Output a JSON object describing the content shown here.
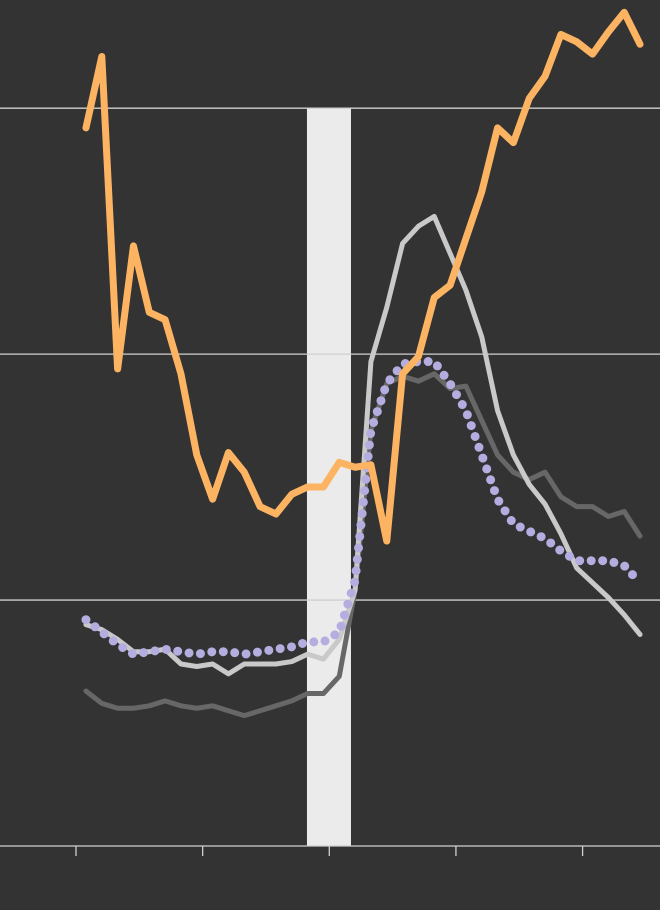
{
  "chart_data": {
    "type": "line",
    "x": [
      1,
      2,
      3,
      4,
      5,
      6,
      7,
      8,
      9,
      10,
      11,
      12,
      13,
      14,
      15,
      16,
      17,
      18,
      19,
      20,
      21,
      22,
      23,
      24,
      25,
      26,
      27,
      28,
      29,
      30,
      31,
      32,
      33,
      34,
      35,
      36
    ],
    "xlim": [
      -4.43,
      37.26
    ],
    "xticks": [
      0.37,
      8.37,
      16.37,
      24.37,
      32.37
    ],
    "ylim": [
      0,
      3.44
    ],
    "yticks": [
      0,
      1,
      2,
      3
    ],
    "grid": true,
    "shaded_span": {
      "x": [
        14.96,
        17.74
      ],
      "y": [
        0,
        3
      ],
      "color": "#ebebeb"
    },
    "series": [
      {
        "color": "#676767",
        "style": "solid",
        "values": [
          0.63,
          0.58,
          0.56,
          0.56,
          0.57,
          0.59,
          0.57,
          0.56,
          0.57,
          0.55,
          0.53,
          0.55,
          0.57,
          0.59,
          0.62,
          0.62,
          0.69,
          1.04,
          1.69,
          1.88,
          1.91,
          1.89,
          1.92,
          1.86,
          1.87,
          1.73,
          1.59,
          1.52,
          1.49,
          1.52,
          1.42,
          1.38,
          1.38,
          1.34,
          1.36,
          1.26
        ]
      },
      {
        "color": "#c9c9c9",
        "style": "solid",
        "values": [
          0.9,
          0.88,
          0.84,
          0.79,
          0.79,
          0.8,
          0.74,
          0.73,
          0.74,
          0.7,
          0.74,
          0.74,
          0.74,
          0.75,
          0.78,
          0.76,
          0.84,
          1.04,
          1.97,
          2.19,
          2.45,
          2.52,
          2.56,
          2.41,
          2.26,
          2.07,
          1.77,
          1.59,
          1.47,
          1.39,
          1.27,
          1.13,
          1.07,
          1.01,
          0.94,
          0.86
        ]
      },
      {
        "color": "#b4aee0",
        "style": "dotted",
        "values": [
          0.92,
          0.87,
          0.82,
          0.78,
          0.79,
          0.8,
          0.79,
          0.78,
          0.79,
          0.79,
          0.78,
          0.79,
          0.8,
          0.81,
          0.83,
          0.83,
          0.87,
          1.08,
          1.69,
          1.88,
          1.96,
          1.97,
          1.97,
          1.88,
          1.77,
          1.59,
          1.41,
          1.31,
          1.28,
          1.25,
          1.2,
          1.16,
          1.16,
          1.16,
          1.14,
          1.07
        ]
      },
      {
        "color": "#fdb462",
        "style": "solid",
        "values": [
          2.92,
          3.21,
          1.94,
          2.44,
          2.17,
          2.14,
          1.92,
          1.59,
          1.41,
          1.6,
          1.52,
          1.38,
          1.35,
          1.43,
          1.46,
          1.46,
          1.56,
          1.54,
          1.55,
          1.24,
          1.92,
          1.99,
          2.23,
          2.28,
          2.47,
          2.66,
          2.92,
          2.86,
          3.04,
          3.13,
          3.3,
          3.27,
          3.22,
          3.31,
          3.39,
          3.26
        ]
      }
    ]
  }
}
